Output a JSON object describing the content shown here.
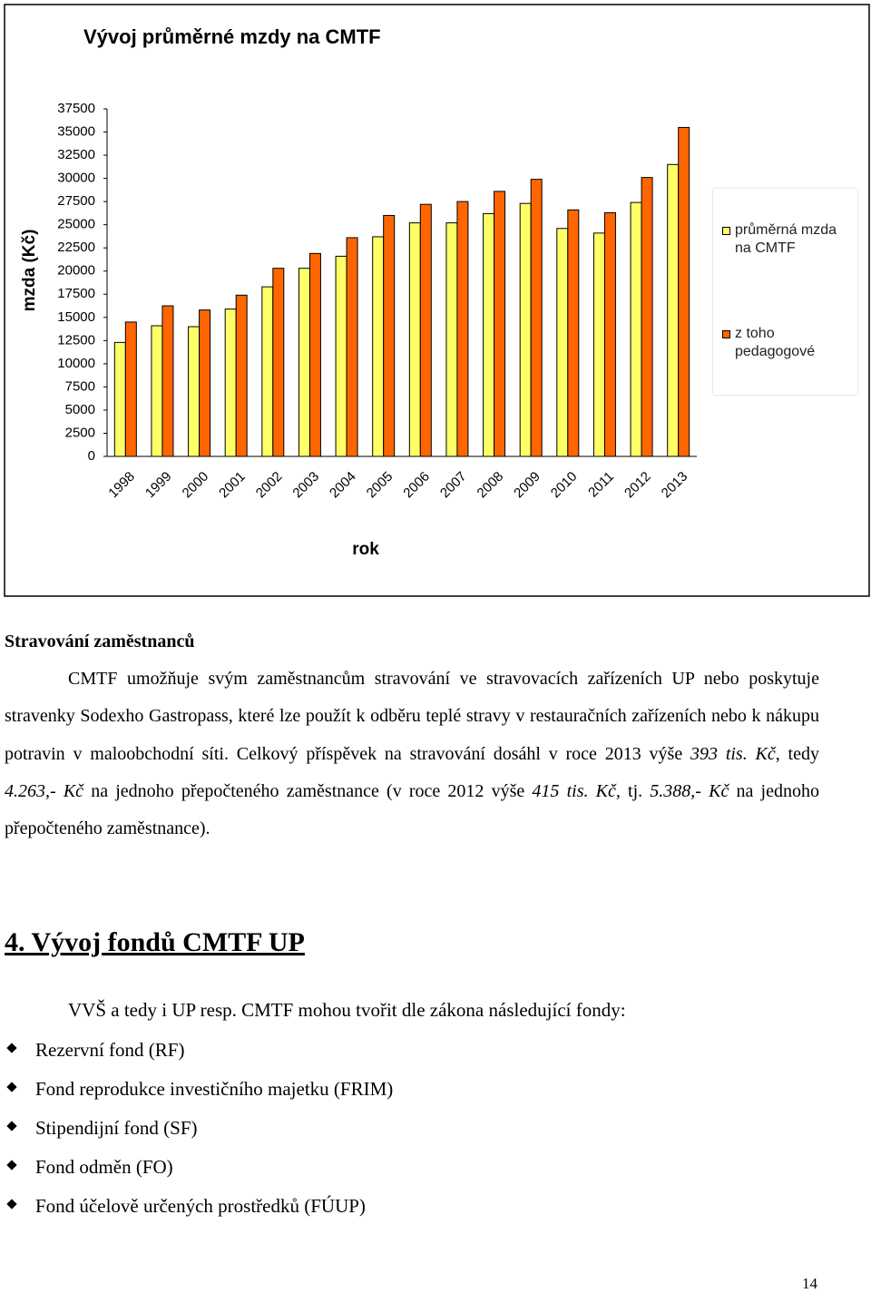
{
  "chart_data": {
    "type": "bar",
    "title": "Vývoj průměrné mzdy na CMTF",
    "y_label": "mzda (Kč)",
    "x_label": "rok",
    "categories": [
      "1998",
      "1999",
      "2000",
      "2001",
      "2002",
      "2003",
      "2004",
      "2005",
      "2006",
      "2007",
      "2008",
      "2009",
      "2010",
      "2011",
      "2012",
      "2013"
    ],
    "series": [
      {
        "name": "průměrná mzda na CMTF",
        "color": "#ffff66",
        "values": [
          12300,
          14100,
          14000,
          15900,
          18300,
          20300,
          21600,
          23700,
          25200,
          25200,
          26200,
          27300,
          24600,
          24100,
          27400,
          31500
        ]
      },
      {
        "name": "z toho pedagogové",
        "color": "#ff6600",
        "values": [
          14500,
          16250,
          15800,
          17400,
          20300,
          21900,
          23600,
          26000,
          27200,
          27500,
          28600,
          29900,
          26600,
          26300,
          30100,
          35500
        ]
      }
    ],
    "ylim": [
      0,
      37500
    ],
    "yticks": [
      0,
      2500,
      5000,
      7500,
      10000,
      12500,
      15000,
      17500,
      20000,
      22500,
      25000,
      27500,
      30000,
      32500,
      35000,
      37500
    ],
    "legend": "right"
  },
  "meals": {
    "heading": "Stravování zaměstnanců",
    "paragraph": [
      "CMTF umožňuje svým zaměstnancům stravování ve stravovacích zařízeních UP nebo poskytuje stravenky Sodexho Gastropass, které lze použít k odběru teplé stravy v restauračních zařízeních nebo k nákupu potravin v maloobchodní síti. Celkový příspěvek na stravování dosáhl v roce 2013 výše ",
      "393 tis. Kč",
      ", tedy ",
      "4.263,- Kč",
      " na jednoho přepočteného zaměstnance (v roce 2012 výše ",
      "415 tis. Kč,",
      " tj. ",
      "5.388,- Kč",
      " na jednoho přepočteného zaměstnance)."
    ]
  },
  "funds": {
    "heading": "4. Vývoj fondů CMTF UP",
    "intro": "VVŠ a tedy i UP resp. CMTF mohou tvořit dle zákona následující fondy:",
    "items": [
      "Rezervní fond (RF)",
      "Fond reprodukce investičního majetku (FRIM)",
      "Stipendijní fond (SF)",
      "Fond odměn (FO)",
      "Fond účelově určených prostředků (FÚUP)"
    ]
  },
  "page_number": "14"
}
